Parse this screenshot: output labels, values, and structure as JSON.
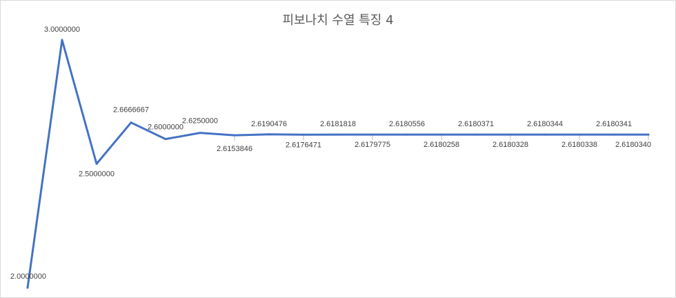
{
  "chart_data": {
    "type": "line",
    "title": "피보나치 수열 특징 4",
    "xlabel": "",
    "ylabel": "",
    "ylim": [
      2.0,
      3.0
    ],
    "grid": false,
    "legend": "none",
    "series": [
      {
        "color": "#4472C4",
        "values": [
          2.0,
          3.0,
          2.5,
          2.6666667,
          2.6,
          2.625,
          2.6153846,
          2.6190476,
          2.6176471,
          2.6181818,
          2.6179775,
          2.6180556,
          2.6180258,
          2.6180371,
          2.6180328,
          2.6180344,
          2.6180338,
          2.6180341,
          2.618034
        ],
        "labels": [
          "2.0000000",
          "3.0000000",
          "2.5000000",
          "2.6666667",
          "2.6000000",
          "2.6250000",
          "2.6153846",
          "2.6190476",
          "2.6176471",
          "2.6181818",
          "2.6179775",
          "2.6180556",
          "2.6180258",
          "2.6180371",
          "2.6180328",
          "2.6180344",
          "2.6180338",
          "2.6180341",
          "2.6180340"
        ]
      }
    ]
  }
}
